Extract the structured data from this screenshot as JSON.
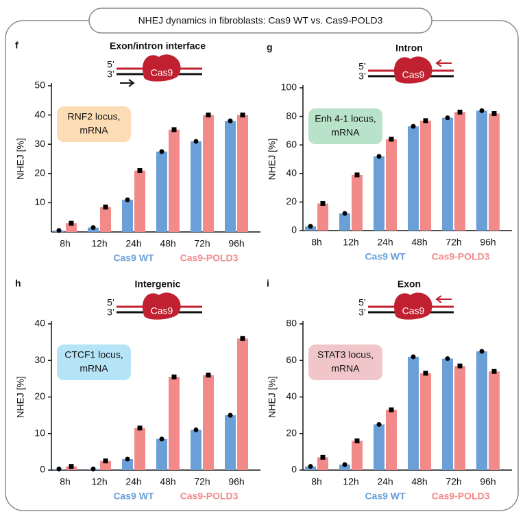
{
  "title": "NHEJ dynamics in fibroblasts: Cas9 WT vs. Cas9-POLD3",
  "chart_data": [
    {
      "type": "bar",
      "panel": "f",
      "title": "Exon/intron interface",
      "strand_labels": [
        "5’",
        "3’"
      ],
      "enzyme": "Cas9",
      "annotation": [
        "RNF2 locus,",
        "mRNA"
      ],
      "annotation_color": "#fcdcb4",
      "y_label": "NHEJ [%]",
      "categories": [
        "8h",
        "12h",
        "24h",
        "48h",
        "72h",
        "96h"
      ],
      "series": [
        {
          "name": "Cas9 WT",
          "color": "#6a9fd8",
          "values": [
            0.5,
            1.5,
            11,
            27.5,
            31,
            38
          ]
        },
        {
          "name": "Cas9-POLD3",
          "color": "#f28a8a",
          "values": [
            3,
            8.5,
            21,
            35,
            40,
            40
          ]
        }
      ],
      "ylim": [
        0,
        50
      ],
      "yticks": [
        10,
        20,
        30,
        40,
        50
      ]
    },
    {
      "type": "bar",
      "panel": "g",
      "title": "Intron",
      "strand_labels": [
        "5’",
        "3’"
      ],
      "enzyme": "Cas9",
      "annotation": [
        "Enh 4-1 locus,",
        "mRNA"
      ],
      "annotation_color": "#b8e2c9",
      "y_label": "NHEJ [%]",
      "categories": [
        "8h",
        "12h",
        "24h",
        "48h",
        "72h",
        "96h"
      ],
      "series": [
        {
          "name": "Cas9 WT",
          "color": "#6a9fd8",
          "values": [
            3,
            12,
            52,
            73,
            79,
            84
          ]
        },
        {
          "name": "Cas9-POLD3",
          "color": "#f28a8a",
          "values": [
            19,
            39,
            64,
            77,
            83,
            82
          ]
        }
      ],
      "ylim": [
        0,
        100
      ],
      "yticks": [
        0,
        20,
        40,
        60,
        80,
        100
      ]
    },
    {
      "type": "bar",
      "panel": "h",
      "title": "Intergenic",
      "strand_labels": [
        "5’",
        "3’"
      ],
      "enzyme": "Cas9",
      "annotation": [
        "CTCF1 locus,",
        "mRNA"
      ],
      "annotation_color": "#b4e4f6",
      "y_label": "NHEJ [%]",
      "categories": [
        "8h",
        "12h",
        "24h",
        "48h",
        "72h",
        "96h"
      ],
      "series": [
        {
          "name": "Cas9 WT",
          "color": "#6a9fd8",
          "values": [
            0.3,
            0.3,
            3,
            8.5,
            11,
            15
          ]
        },
        {
          "name": "Cas9-POLD3",
          "color": "#f28a8a",
          "values": [
            1,
            2.5,
            11.5,
            25.5,
            26,
            36
          ]
        }
      ],
      "ylim": [
        0,
        40
      ],
      "yticks": [
        0,
        10,
        20,
        30,
        40
      ]
    },
    {
      "type": "bar",
      "panel": "i",
      "title": "Exon",
      "strand_labels": [
        "5’",
        "3’"
      ],
      "enzyme": "Cas9",
      "annotation": [
        "STAT3 locus,",
        "mRNA"
      ],
      "annotation_color": "#f0c6ca",
      "y_label": "NHEJ [%]",
      "categories": [
        "8h",
        "12h",
        "24h",
        "48h",
        "72h",
        "96h"
      ],
      "series": [
        {
          "name": "Cas9 WT",
          "color": "#6a9fd8",
          "values": [
            2,
            3,
            25,
            62,
            61,
            65
          ]
        },
        {
          "name": "Cas9-POLD3",
          "color": "#f28a8a",
          "values": [
            7,
            16,
            33,
            53,
            57,
            54
          ]
        }
      ],
      "ylim": [
        0,
        80
      ],
      "yticks": [
        0,
        20,
        40,
        60,
        80
      ]
    }
  ]
}
